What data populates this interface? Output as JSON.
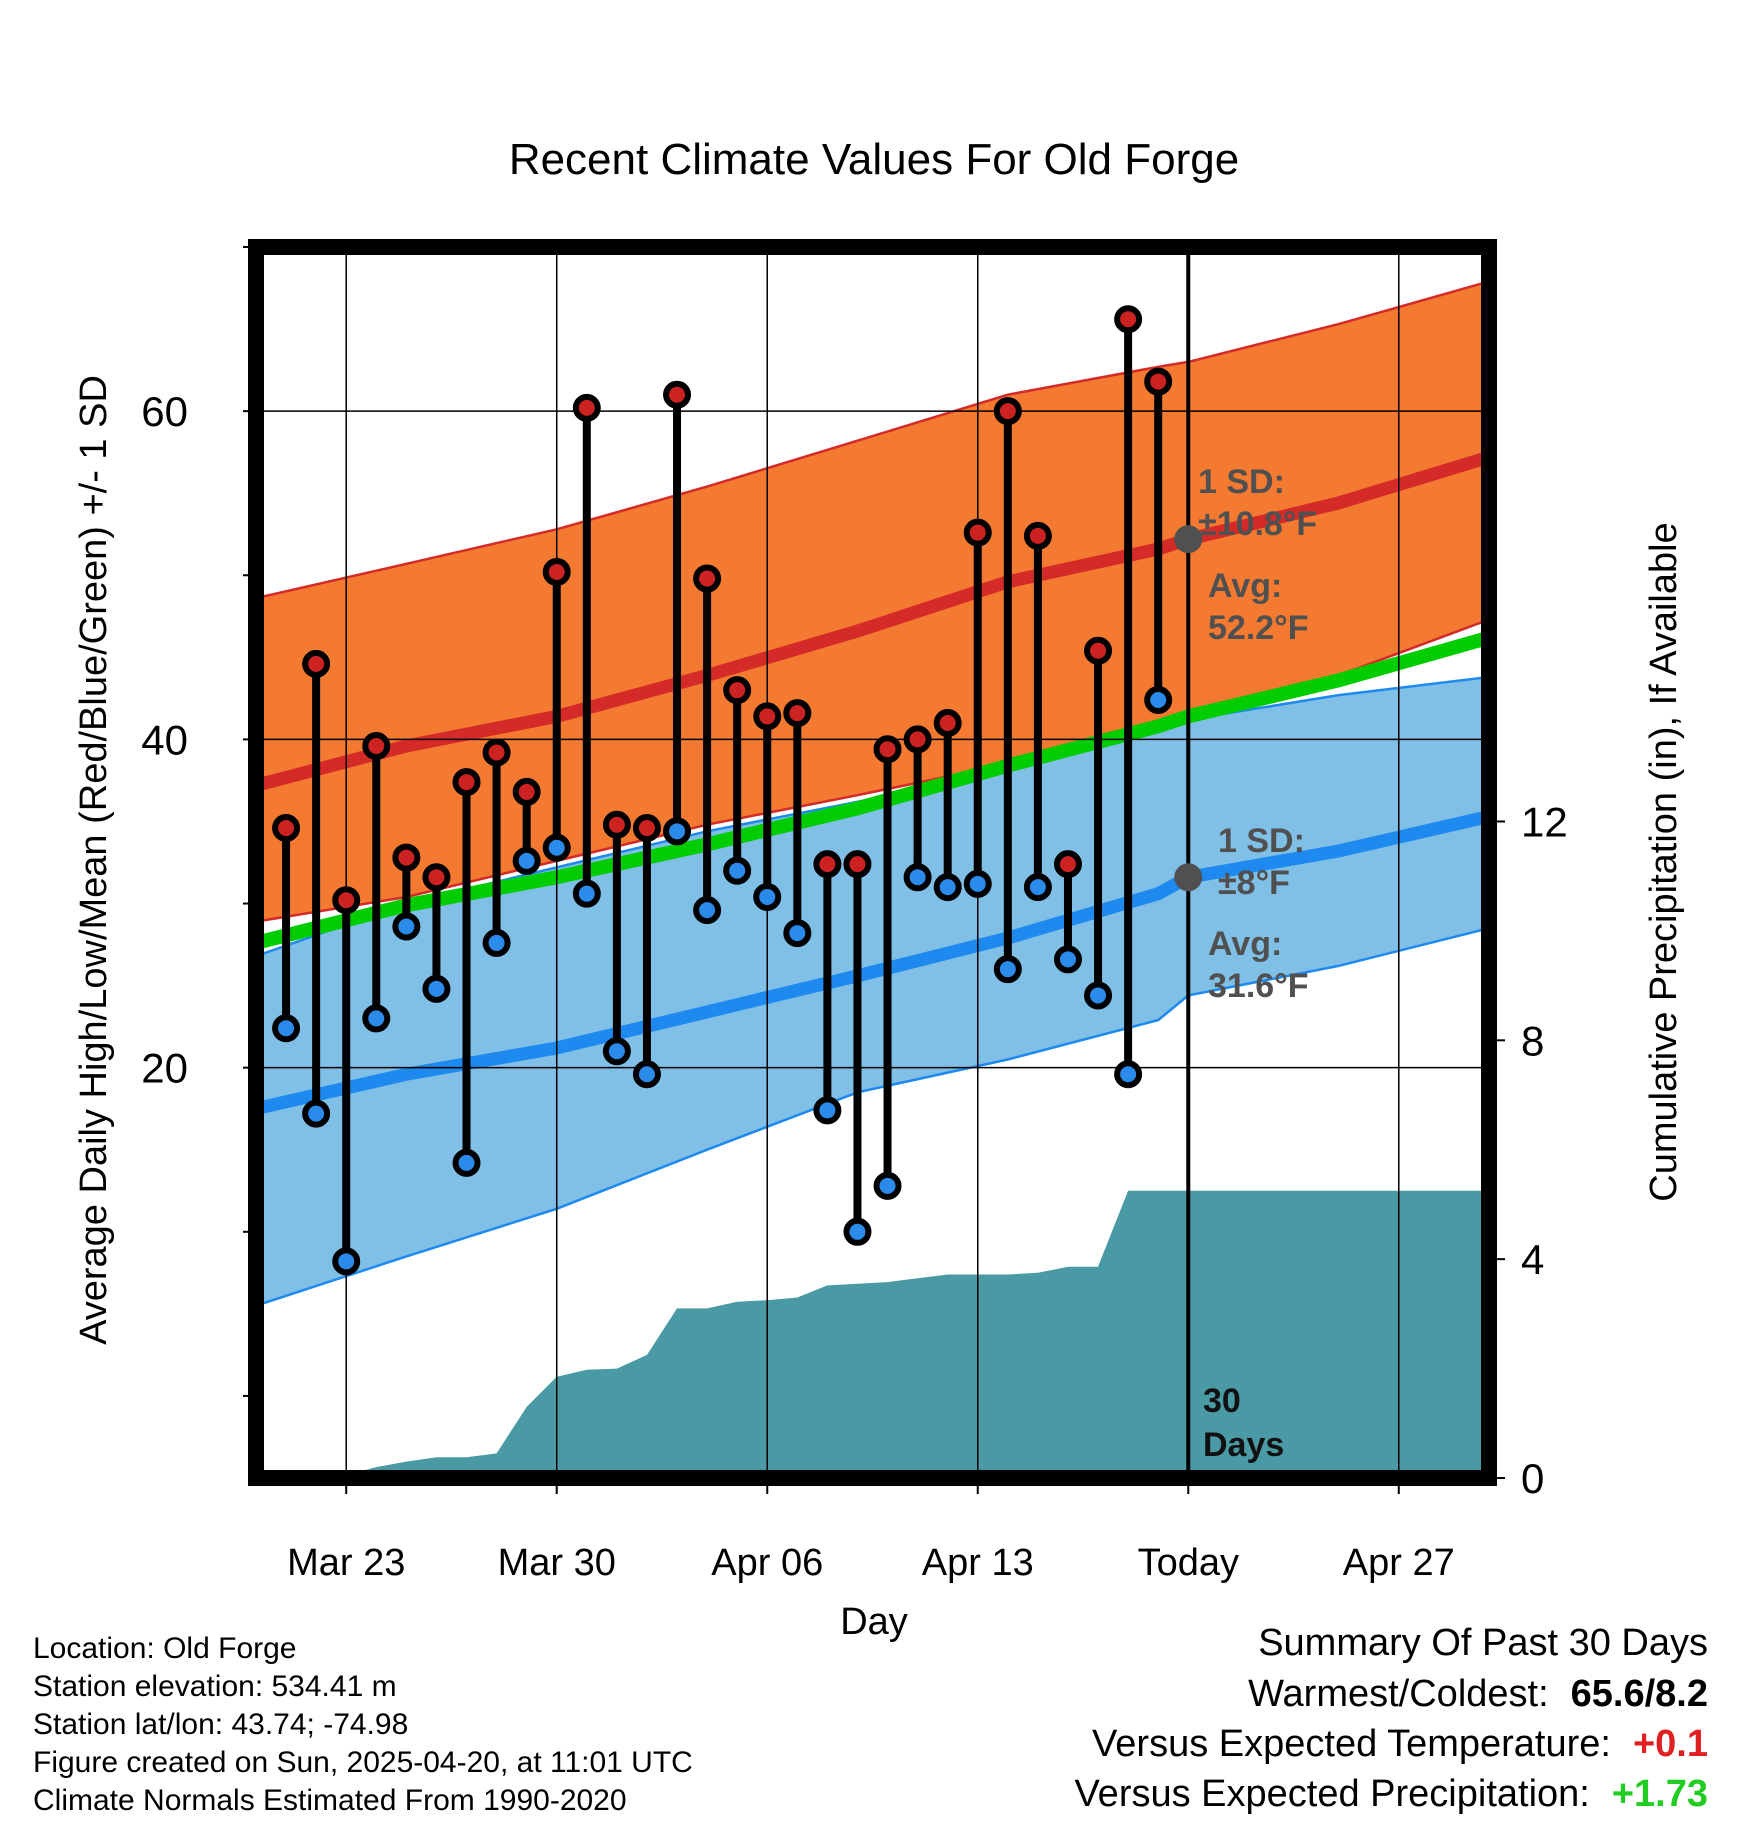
{
  "chart_data": {
    "type": "line",
    "title": "Recent Climate Values For Old Forge",
    "xlabel": "Day",
    "ylabel": "Average Daily High/Low/Mean (Red/Blue/Green) +/- 1 SD",
    "y2label": "Cumulative Precipitation (in), If Available",
    "x_ticks": [
      "Mar 23",
      "Mar 30",
      "Apr 06",
      "Apr 13",
      "Today",
      "Apr 27"
    ],
    "x_tick_dates": [
      "2025-03-23",
      "2025-03-30",
      "2025-04-06",
      "2025-04-13",
      "2025-04-20",
      "2025-04-27"
    ],
    "xlim": [
      "2025-03-20",
      "2025-04-30"
    ],
    "ylim": [
      -5,
      70
    ],
    "y_ticks": [
      20,
      40,
      60
    ],
    "y2lim": [
      0,
      22.5
    ],
    "y2_ticks": [
      0,
      4,
      8,
      12
    ],
    "grid": true,
    "today": "2025-04-20",
    "dates": [
      "2025-03-21",
      "2025-03-22",
      "2025-03-23",
      "2025-03-24",
      "2025-03-25",
      "2025-03-26",
      "2025-03-27",
      "2025-03-28",
      "2025-03-29",
      "2025-03-30",
      "2025-03-31",
      "2025-04-01",
      "2025-04-02",
      "2025-04-03",
      "2025-04-04",
      "2025-04-05",
      "2025-04-06",
      "2025-04-07",
      "2025-04-08",
      "2025-04-09",
      "2025-04-10",
      "2025-04-11",
      "2025-04-12",
      "2025-04-13",
      "2025-04-14",
      "2025-04-15",
      "2025-04-16",
      "2025-04-17",
      "2025-04-18",
      "2025-04-19"
    ],
    "observed_high": [
      34.6,
      44.6,
      30.2,
      39.6,
      32.8,
      31.6,
      37.4,
      39.2,
      36.8,
      50.2,
      60.2,
      34.8,
      34.6,
      61.0,
      49.8,
      43.0,
      41.4,
      41.6,
      32.4,
      32.4,
      39.4,
      40.0,
      41.0,
      52.6,
      60.0,
      52.4,
      32.4,
      45.4,
      65.6,
      61.8
    ],
    "observed_low": [
      22.4,
      17.2,
      8.2,
      23.0,
      28.6,
      24.8,
      14.2,
      27.6,
      32.6,
      33.4,
      30.6,
      21.0,
      19.6,
      34.4,
      29.6,
      32.0,
      30.4,
      28.2,
      17.4,
      10.0,
      12.8,
      31.6,
      31.0,
      31.2,
      26.0,
      31.0,
      26.6,
      24.4,
      19.6,
      42.4
    ],
    "normal_dates": [
      "2025-03-20",
      "2025-03-25",
      "2025-03-30",
      "2025-04-04",
      "2025-04-09",
      "2025-04-14",
      "2025-04-19",
      "2025-04-20",
      "2025-04-25",
      "2025-04-30"
    ],
    "normal_high": [
      37.2,
      39.6,
      41.4,
      43.9,
      46.6,
      49.6,
      51.6,
      52.2,
      54.4,
      57.2
    ],
    "normal_high_upper": [
      48.6,
      50.7,
      52.8,
      55.4,
      58.2,
      61.0,
      62.7,
      63.0,
      65.3,
      67.9
    ],
    "normal_high_lower": [
      28.9,
      30.4,
      32.6,
      34.8,
      36.6,
      38.5,
      40.9,
      41.4,
      43.9,
      47.3
    ],
    "normal_mean": [
      27.6,
      29.9,
      31.6,
      33.6,
      35.8,
      38.4,
      40.8,
      41.4,
      43.6,
      46.2
    ],
    "normal_low": [
      17.5,
      19.6,
      21.2,
      23.4,
      25.6,
      27.9,
      30.6,
      31.6,
      33.2,
      35.3
    ],
    "normal_low_upper": [
      26.8,
      30.0,
      32.2,
      34.4,
      36.2,
      38.2,
      40.8,
      41.2,
      42.7,
      43.8
    ],
    "normal_low_lower": [
      5.5,
      8.5,
      11.4,
      15.0,
      18.5,
      20.5,
      22.9,
      24.4,
      26.2,
      28.5
    ],
    "precip_dates": [
      "2025-03-20",
      "2025-03-21",
      "2025-03-22",
      "2025-03-23",
      "2025-03-24",
      "2025-03-25",
      "2025-03-26",
      "2025-03-27",
      "2025-03-28",
      "2025-03-29",
      "2025-03-30",
      "2025-03-31",
      "2025-04-01",
      "2025-04-02",
      "2025-04-03",
      "2025-04-04",
      "2025-04-05",
      "2025-04-06",
      "2025-04-07",
      "2025-04-08",
      "2025-04-09",
      "2025-04-10",
      "2025-04-11",
      "2025-04-12",
      "2025-04-13",
      "2025-04-14",
      "2025-04-15",
      "2025-04-16",
      "2025-04-17",
      "2025-04-18",
      "2025-04-19",
      "2025-04-20",
      "2025-04-30"
    ],
    "precip_cum": [
      0.0,
      0.0,
      0.05,
      0.05,
      0.2,
      0.3,
      0.38,
      0.38,
      0.45,
      1.3,
      1.85,
      1.98,
      2.0,
      2.25,
      3.1,
      3.1,
      3.22,
      3.25,
      3.3,
      3.52,
      3.55,
      3.58,
      3.65,
      3.72,
      3.72,
      3.72,
      3.75,
      3.86,
      3.86,
      5.25,
      5.25,
      5.25,
      5.25
    ],
    "precip_label": "30\nDays",
    "high_sd_label": "1 SD:\n±10.8°F",
    "high_avg_label": "Avg:\n52.2°F",
    "low_sd_label": "1 SD:\n±8°F",
    "low_avg_label": "Avg:\n31.6°F",
    "today_high_avg": 52.2,
    "today_low_avg": 31.6,
    "colors": {
      "high_band": "#F37A30",
      "high_line": "#D42A28",
      "low_band": "#80BFE6",
      "low_line": "#1E8AEF",
      "mean_line": "#00CC00",
      "precip": "#4A9AA6",
      "annot": "#505050",
      "high_dot": "#CC2222",
      "low_dot": "#2B8BEA"
    }
  },
  "info": {
    "location": "Location: Old Forge",
    "elevation": "Station elevation: 534.41 m",
    "latlon": "Station lat/lon: 43.74; -74.98",
    "created": "Figure created on Sun, 2025-04-20, at 11:01 UTC",
    "normals": "Climate Normals Estimated From 1990-2020"
  },
  "summary": {
    "title": "Summary Of Past 30 Days",
    "warmest_label": "Warmest/Coldest:",
    "warmest_value": "65.6/8.2",
    "temp_label": "Versus Expected Temperature:",
    "temp_value": "+0.1",
    "temp_color": "#E02020",
    "precip_label": "Versus Expected Precipitation:",
    "precip_value": "+1.73",
    "precip_color": "#22CC22"
  }
}
